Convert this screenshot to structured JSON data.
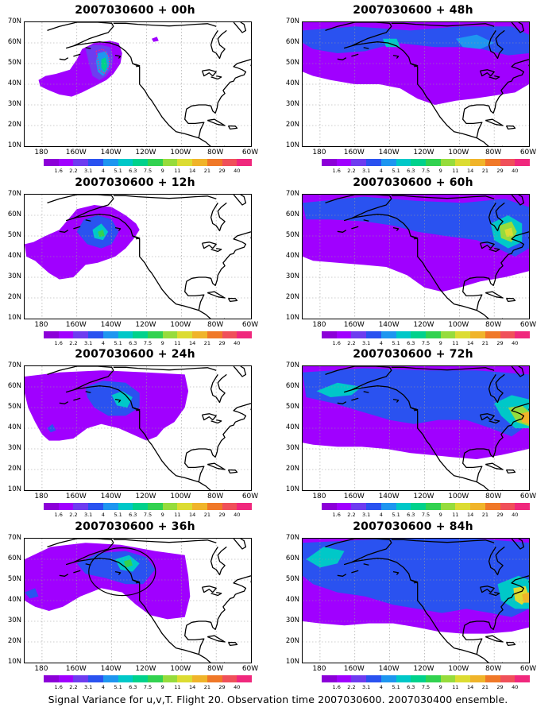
{
  "caption": "Signal Variance for u,v,T. Flight 20. Observation time 2007030600. 2007030400 ensemble.",
  "lat_labels": [
    "70N",
    "60N",
    "50N",
    "40N",
    "30N",
    "20N",
    "10N"
  ],
  "lon_labels": [
    "180",
    "160W",
    "140W",
    "120W",
    "100W",
    "80W",
    "60W"
  ],
  "colorbar": {
    "labels": [
      "1.6",
      "2.2",
      "3.1",
      "4",
      "5.1",
      "6.3",
      "7.5",
      "9",
      "11",
      "14",
      "21",
      "29",
      "40"
    ],
    "colors": [
      "#8c00d8",
      "#a000ff",
      "#6e3cf0",
      "#2a52f0",
      "#1e96f0",
      "#00c8c8",
      "#00d28c",
      "#32d250",
      "#96dc3c",
      "#dcdc32",
      "#f0b42a",
      "#f07828",
      "#f0505a",
      "#f0287d"
    ]
  },
  "panels": [
    {
      "id": "p00",
      "title": "2007030600 + 00h"
    },
    {
      "id": "p48",
      "title": "2007030600 + 48h"
    },
    {
      "id": "p12",
      "title": "2007030600 + 12h"
    },
    {
      "id": "p60",
      "title": "2007030600 + 60h"
    },
    {
      "id": "p24",
      "title": "2007030600 + 24h"
    },
    {
      "id": "p72",
      "title": "2007030600 + 72h"
    },
    {
      "id": "p36",
      "title": "2007030600 + 36h"
    },
    {
      "id": "p84",
      "title": "2007030600 + 84h"
    }
  ]
}
